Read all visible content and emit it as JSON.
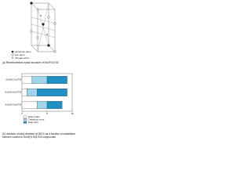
{
  "diagram": {
    "legend": [
      "samarium atom",
      "iron atom",
      "nitrogen atom"
    ],
    "caption": "(a) Rhombohedral crystal structure of Sm2Fe17N3"
  },
  "chart_data": {
    "type": "hbar-stacked",
    "categories": [
      "Sm2(Fe,Cr)17N3",
      "Sm2(Fe,Mn)17N3",
      "Sm2(Fe,Ga)17N3"
    ],
    "series": [
      {
        "name": "Easy plane",
        "color": "#ffffff",
        "values": [
          2,
          1,
          3
        ]
      },
      {
        "name": "Transition zone",
        "color": "#9fd4ea",
        "values": [
          3,
          2,
          2
        ]
      },
      {
        "name": "Easy axis",
        "color": "#1f8fc4",
        "values": [
          4,
          6,
          3
        ]
      }
    ],
    "xlim": [
      0,
      10
    ],
    "xticks": [
      0,
      5,
      10
    ],
    "caption": "(b) Variation of easy direction at 300 K as a function of substituted element content in Sm2(Fe,M)17N3 compounds"
  }
}
